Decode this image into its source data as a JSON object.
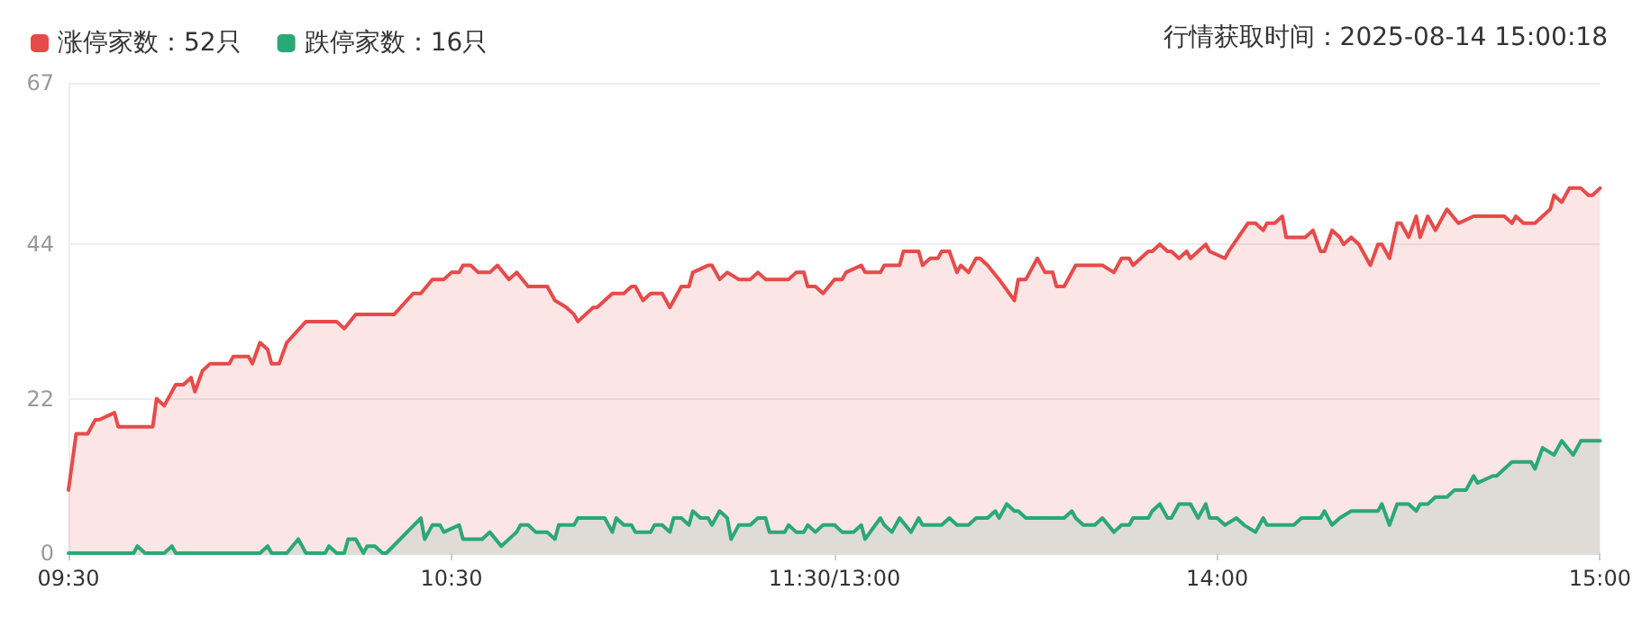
{
  "chart_data": [
    {
      "type": "area",
      "xlim": [
        9.5,
        11.5
      ],
      "xticks": [
        {
          "value": 9.5,
          "label": "09:30"
        },
        {
          "value": 10.5,
          "label": "10:30"
        },
        {
          "value": 11.5,
          "label": "11:30/13:00"
        }
      ],
      "ylim": [
        0,
        67
      ],
      "yticks": [
        0,
        22,
        44,
        67
      ],
      "grid": "y",
      "legend": "top left",
      "marker": "none",
      "line_style": "solid",
      "series": [
        {
          "name": "涨停家数：52只",
          "color": "#e84a4a",
          "x": [
            9.5,
            9.52,
            9.55,
            9.57,
            9.58,
            9.62,
            9.63,
            9.72,
            9.73,
            9.75,
            9.78,
            9.8,
            9.82,
            9.83,
            9.85,
            9.87,
            9.92,
            9.93,
            9.97,
            9.98,
            10,
            10.02,
            10.03,
            10.05,
            10.07,
            10.12,
            10.15,
            10.2,
            10.22,
            10.25,
            10.35,
            10.4,
            10.42,
            10.45,
            10.48,
            10.5,
            10.52,
            10.53,
            10.55,
            10.57,
            10.6,
            10.62,
            10.65,
            10.67,
            10.7,
            10.73,
            10.75,
            10.77,
            10.8,
            10.82,
            10.83,
            10.87,
            10.88,
            10.92,
            10.95,
            10.97,
            10.98,
            11,
            11.02,
            11.05,
            11.07,
            11.1,
            11.12,
            11.13,
            11.17,
            11.18,
            11.2,
            11.22,
            11.25,
            11.28,
            11.3,
            11.32,
            11.38,
            11.4,
            11.42,
            11.43,
            11.45,
            11.47,
            11.5
          ],
          "values": [
            9,
            17,
            17,
            19,
            19,
            20,
            18,
            18,
            22,
            21,
            24,
            24,
            25,
            23,
            26,
            27,
            27,
            28,
            28,
            27,
            30,
            29,
            27,
            27,
            30,
            33,
            33,
            33,
            32,
            34,
            34,
            37,
            37,
            39,
            39,
            40,
            40,
            41,
            41,
            40,
            40,
            41,
            39,
            40,
            38,
            38,
            38,
            36,
            35,
            34,
            33,
            35,
            35,
            37,
            37,
            38,
            38,
            36,
            37,
            37,
            35,
            38,
            38,
            40,
            41,
            41,
            39,
            40,
            39,
            39,
            40,
            39,
            39,
            40,
            40,
            38,
            38,
            37,
            39
          ]
        },
        {
          "name": "跌停家数：16只",
          "color": "#2aa876",
          "x": [
            9.5,
            9.67,
            9.68,
            9.7,
            9.75,
            9.77,
            9.78,
            10,
            10.02,
            10.03,
            10.07,
            10.1,
            10.12,
            10.17,
            10.18,
            10.2,
            10.22,
            10.23,
            10.25,
            10.27,
            10.28,
            10.3,
            10.32,
            10.33,
            10.42,
            10.43,
            10.45,
            10.47,
            10.48,
            10.52,
            10.53,
            10.58,
            10.6,
            10.63,
            10.67,
            10.68,
            10.7,
            10.72,
            10.75,
            10.77,
            10.78,
            10.82,
            10.83,
            10.9,
            10.92,
            10.93,
            10.95,
            10.97,
            10.98,
            11.02,
            11.03,
            11.05,
            11.07,
            11.08,
            11.1,
            11.12,
            11.13,
            11.15,
            11.17,
            11.18,
            11.2,
            11.22,
            11.23,
            11.25,
            11.28,
            11.3,
            11.32,
            11.33,
            11.37,
            11.38,
            11.4,
            11.42,
            11.43,
            11.45,
            11.47,
            11.5
          ],
          "values": [
            0,
            0,
            1,
            0,
            0,
            1,
            0,
            0,
            1,
            0,
            0,
            2,
            0,
            0,
            1,
            0,
            0,
            2,
            2,
            0,
            1,
            1,
            0,
            0,
            5,
            2,
            4,
            4,
            3,
            4,
            2,
            2,
            3,
            1,
            3,
            4,
            4,
            3,
            3,
            2,
            4,
            4,
            5,
            5,
            3,
            5,
            4,
            4,
            3,
            3,
            4,
            4,
            3,
            5,
            5,
            4,
            6,
            5,
            5,
            4,
            6,
            5,
            2,
            4,
            4,
            5,
            5,
            3,
            3,
            4,
            3,
            3,
            4,
            3,
            4,
            4
          ]
        }
      ]
    },
    {
      "type": "area",
      "annotations": [
        "行情获取时间：2025-08-14 15:00:18"
      ],
      "xlim": [
        13,
        15
      ],
      "xticks": [
        {
          "value": 14,
          "label": "14:00"
        },
        {
          "value": 15,
          "label": "15:00"
        }
      ],
      "ylim": [
        0,
        67
      ],
      "yticks": [
        0,
        22,
        44,
        67
      ],
      "grid": "y",
      "tick_labels": "x",
      "marker": "none",
      "line_style": "solid",
      "series": [
        {
          "color": "#e84a4a",
          "x": [
            13,
            13.02,
            13.03,
            13.07,
            13.08,
            13.12,
            13.13,
            13.17,
            13.18,
            13.22,
            13.23,
            13.25,
            13.27,
            13.28,
            13.3,
            13.32,
            13.33,
            13.35,
            13.37,
            13.38,
            13.4,
            13.43,
            13.47,
            13.48,
            13.5,
            13.52,
            13.53,
            13.55,
            13.57,
            13.58,
            13.6,
            13.63,
            13.7,
            13.73,
            13.75,
            13.77,
            13.78,
            13.82,
            13.83,
            13.85,
            13.87,
            13.88,
            13.9,
            13.92,
            13.93,
            13.97,
            13.98,
            14.02,
            14.03,
            14.08,
            14.1,
            14.12,
            14.13,
            14.15,
            14.17,
            14.18,
            14.23,
            14.25,
            14.27,
            14.28,
            14.3,
            14.32,
            14.33,
            14.35,
            14.37,
            14.38,
            14.4,
            14.42,
            14.43,
            14.45,
            14.47,
            14.48,
            14.5,
            14.52,
            14.53,
            14.55,
            14.57,
            14.6,
            14.63,
            14.67,
            14.75,
            14.77,
            14.78,
            14.8,
            14.83,
            14.87,
            14.88,
            14.9,
            14.92,
            14.95,
            14.97,
            14.98,
            15
          ],
          "values": [
            39,
            39,
            40,
            41,
            40,
            40,
            41,
            41,
            43,
            43,
            41,
            42,
            42,
            43,
            43,
            40,
            41,
            40,
            42,
            42,
            41,
            39,
            36,
            39,
            39,
            41,
            42,
            40,
            40,
            38,
            38,
            41,
            41,
            40,
            42,
            42,
            41,
            43,
            43,
            44,
            43,
            43,
            42,
            43,
            42,
            44,
            43,
            42,
            43,
            47,
            47,
            46,
            47,
            47,
            48,
            45,
            45,
            46,
            43,
            43,
            46,
            45,
            44,
            45,
            44,
            43,
            41,
            44,
            44,
            42,
            47,
            47,
            45,
            48,
            45,
            48,
            46,
            49,
            47,
            48,
            48,
            47,
            48,
            47,
            47,
            49,
            51,
            50,
            52,
            52,
            51,
            51,
            52
          ]
        },
        {
          "color": "#2aa876",
          "x": [
            13,
            13.02,
            13.05,
            13.07,
            13.08,
            13.12,
            13.13,
            13.15,
            13.17,
            13.2,
            13.22,
            13.23,
            13.28,
            13.3,
            13.32,
            13.35,
            13.37,
            13.4,
            13.42,
            13.43,
            13.45,
            13.47,
            13.48,
            13.5,
            13.6,
            13.62,
            13.63,
            13.65,
            13.68,
            13.7,
            13.73,
            13.75,
            13.77,
            13.78,
            13.82,
            13.83,
            13.85,
            13.87,
            13.88,
            13.9,
            13.93,
            13.95,
            13.97,
            13.98,
            14,
            14.02,
            14.05,
            14.07,
            14.1,
            14.12,
            14.13,
            14.2,
            14.22,
            14.27,
            14.28,
            14.3,
            14.32,
            14.35,
            14.42,
            14.43,
            14.45,
            14.47,
            14.5,
            14.52,
            14.53,
            14.55,
            14.57,
            14.6,
            14.62,
            14.65,
            14.67,
            14.68,
            14.72,
            14.73,
            14.77,
            14.82,
            14.83,
            14.85,
            14.88,
            14.9,
            14.93,
            14.95,
            15
          ],
          "values": [
            4,
            3,
            3,
            4,
            2,
            5,
            4,
            3,
            5,
            3,
            5,
            4,
            4,
            5,
            4,
            4,
            5,
            5,
            6,
            5,
            7,
            6,
            6,
            5,
            5,
            6,
            5,
            4,
            4,
            5,
            3,
            4,
            4,
            5,
            5,
            6,
            7,
            5,
            5,
            7,
            7,
            5,
            7,
            5,
            5,
            4,
            5,
            4,
            3,
            5,
            4,
            4,
            5,
            5,
            6,
            4,
            5,
            6,
            6,
            7,
            4,
            7,
            7,
            6,
            7,
            7,
            8,
            8,
            9,
            9,
            11,
            10,
            11,
            11,
            13,
            13,
            12,
            15,
            14,
            16,
            14,
            16,
            16
          ]
        }
      ]
    }
  ]
}
